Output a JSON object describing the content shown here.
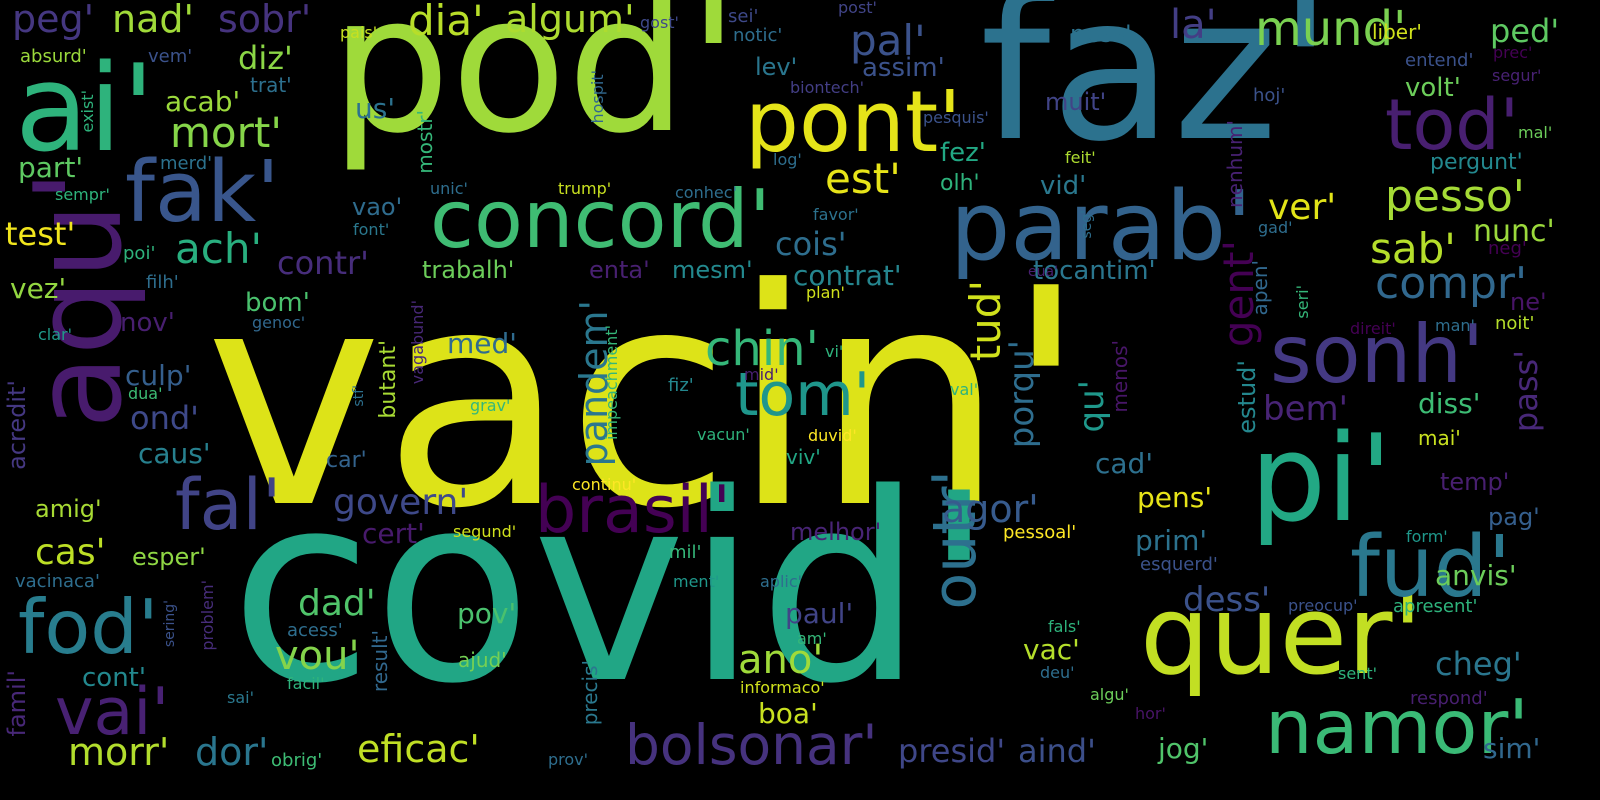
{
  "words": [
    {
      "text": "vacin'",
      "color": "#dde318"
    },
    {
      "text": "covid'",
      "color": "#21a685"
    },
    {
      "text": "pod'",
      "color": "#9fda3a"
    },
    {
      "text": "faz'",
      "color": "#2c728e"
    },
    {
      "text": "aqu'",
      "color": "#481b6d"
    },
    {
      "text": "ai'",
      "color": "#2eb37c"
    },
    {
      "text": "pont'",
      "color": "#e5e419"
    },
    {
      "text": "quer'",
      "color": "#c2df23"
    },
    {
      "text": "pi'",
      "color": "#22a884"
    },
    {
      "text": "fud'",
      "color": "#2a788e"
    },
    {
      "text": "parab'",
      "color": "#33638d"
    },
    {
      "text": "concord'",
      "color": "#3fbc73"
    },
    {
      "text": "fak'",
      "color": "#39568c"
    },
    {
      "text": "sonh'",
      "color": "#443983"
    },
    {
      "text": "tod'",
      "color": "#481f70"
    },
    {
      "text": "brasil'",
      "color": "#440154"
    },
    {
      "text": "bolsonar'",
      "color": "#46327e"
    },
    {
      "text": "namor'",
      "color": "#3aba76"
    },
    {
      "text": "fod'",
      "color": "#287d8e"
    },
    {
      "text": "vai'",
      "color": "#482173"
    },
    {
      "text": "fal'",
      "color": "#414487"
    },
    {
      "text": "tom'",
      "color": "#1f968b"
    },
    {
      "text": "outr'",
      "color": "#2d708e"
    },
    {
      "text": "tud'",
      "color": "#d0e11c"
    },
    {
      "text": "mund'",
      "color": "#7ad151"
    },
    {
      "text": "est'",
      "color": "#e7e419"
    },
    {
      "text": "compr'",
      "color": "#31688e"
    },
    {
      "text": "pesso'",
      "color": "#a5db36"
    },
    {
      "text": "sab'",
      "color": "#b5de2b"
    },
    {
      "text": "chin'",
      "color": "#35b779"
    },
    {
      "text": "pandem'",
      "color": "#2a778e"
    },
    {
      "text": "ach'",
      "color": "#29af7f"
    },
    {
      "text": "mort'",
      "color": "#86d549"
    },
    {
      "text": "pal'",
      "color": "#3b528b"
    },
    {
      "text": "dia'",
      "color": "#b8de29"
    },
    {
      "text": "algum'",
      "color": "#addc30"
    },
    {
      "text": "nad'",
      "color": "#a0da39"
    },
    {
      "text": "sobr'",
      "color": "#46337e"
    },
    {
      "text": "peg'",
      "color": "#453781"
    },
    {
      "text": "diz'",
      "color": "#8bd646"
    },
    {
      "text": "la'",
      "color": "#433e85"
    },
    {
      "text": "ped'",
      "color": "#5ec962"
    },
    {
      "text": "ver'",
      "color": "#e2e418"
    },
    {
      "text": "nunc'",
      "color": "#9bd93c"
    },
    {
      "text": "govern'",
      "color": "#3e4989"
    },
    {
      "text": "agor'",
      "color": "#375b8d"
    },
    {
      "text": "eficac'",
      "color": "#c0df25"
    },
    {
      "text": "morr'",
      "color": "#b2dd2d"
    },
    {
      "text": "dor'",
      "color": "#2a768e"
    },
    {
      "text": "ano'",
      "color": "#9fda3a"
    },
    {
      "text": "vou'",
      "color": "#84d44b"
    },
    {
      "text": "dad'",
      "color": "#50c46a"
    },
    {
      "text": "presid'",
      "color": "#3f4788"
    },
    {
      "text": "aind'",
      "color": "#3c4f8a"
    },
    {
      "text": "cheg'",
      "color": "#2a768e"
    },
    {
      "text": "pass'",
      "color": "#482878"
    },
    {
      "text": "bem'",
      "color": "#482475"
    },
    {
      "text": "test'",
      "color": "#f1e51d"
    },
    {
      "text": "cas'",
      "color": "#bddf26"
    },
    {
      "text": "contr'",
      "color": "#472d7b"
    },
    {
      "text": "cois'",
      "color": "#2e6e8e"
    },
    {
      "text": "contrat'",
      "color": "#25858e"
    },
    {
      "text": "tocantim'",
      "color": "#2a768e"
    },
    {
      "text": "trabalh'",
      "color": "#6ccd5a"
    },
    {
      "text": "enta'",
      "color": "#482071"
    },
    {
      "text": "mesm'",
      "color": "#23898e"
    },
    {
      "text": "gent'",
      "color": "#440154"
    },
    {
      "text": "porqu'",
      "color": "#2e6d8e"
    },
    {
      "text": "qu'",
      "color": "#1f988b"
    },
    {
      "text": "dess'",
      "color": "#3b528b"
    },
    {
      "text": "anvis'",
      "color": "#6ccd5a"
    },
    {
      "text": "diss'",
      "color": "#3dbc74"
    },
    {
      "text": "estud'",
      "color": "#24878e"
    },
    {
      "text": "acredit'",
      "color": "#453882"
    },
    {
      "text": "famil'",
      "color": "#482878"
    },
    {
      "text": "sim'",
      "color": "#31688e"
    },
    {
      "text": "jog'",
      "color": "#50c46a"
    },
    {
      "text": "vac'",
      "color": "#b5de2b"
    },
    {
      "text": "boa'",
      "color": "#c8e020"
    },
    {
      "text": "paul'",
      "color": "#414487"
    },
    {
      "text": "cert'",
      "color": "#481a6c"
    },
    {
      "text": "cad'",
      "color": "#2d708e"
    },
    {
      "text": "pens'",
      "color": "#e7e419"
    },
    {
      "text": "prim'",
      "color": "#2c728e"
    },
    {
      "text": "melhor'",
      "color": "#482475"
    },
    {
      "text": "med'",
      "color": "#2f6b8e"
    },
    {
      "text": "ond'",
      "color": "#3e4989"
    },
    {
      "text": "culp'",
      "color": "#355f8d"
    },
    {
      "text": "caus'",
      "color": "#27808e"
    },
    {
      "text": "amig'",
      "color": "#a8db34"
    },
    {
      "text": "esper'",
      "color": "#8fd744"
    },
    {
      "text": "part'",
      "color": "#5ec962"
    },
    {
      "text": "acab'",
      "color": "#9bd93c"
    },
    {
      "text": "us'",
      "color": "#2c728e"
    },
    {
      "text": "vez'",
      "color": "#93d741"
    },
    {
      "text": "nov'",
      "color": "#481f70"
    },
    {
      "text": "bom'",
      "color": "#4ac16d"
    },
    {
      "text": "cont'",
      "color": "#23888e"
    },
    {
      "text": "pov'",
      "color": "#4ac16d"
    },
    {
      "text": "ajud'",
      "color": "#75d054"
    },
    {
      "text": "butant'",
      "color": "#a8db34"
    },
    {
      "text": "result'",
      "color": "#31688e"
    },
    {
      "text": "precis'",
      "color": "#2a788e"
    },
    {
      "text": "menos'",
      "color": "#481668"
    },
    {
      "text": "fez'",
      "color": "#22a884"
    },
    {
      "text": "olh'",
      "color": "#2eb37c"
    },
    {
      "text": "vid'",
      "color": "#2a788e"
    },
    {
      "text": "muit'",
      "color": "#414487"
    },
    {
      "text": "assim'",
      "color": "#3b528b"
    },
    {
      "text": "lev'",
      "color": "#2a768e"
    },
    {
      "text": "ness'",
      "color": "#2c728e"
    },
    {
      "text": "volt'",
      "color": "#6ccd5a"
    },
    {
      "text": "pergunt'",
      "color": "#23888e"
    },
    {
      "text": "temp'",
      "color": "#481f70"
    },
    {
      "text": "pag'",
      "color": "#355f8d"
    },
    {
      "text": "mai'",
      "color": "#c8e020"
    },
    {
      "text": "vao'",
      "color": "#2f6c8e"
    },
    {
      "text": "car'",
      "color": "#33638d"
    },
    {
      "text": "viv'",
      "color": "#22a785"
    },
    {
      "text": "apen'",
      "color": "#31688e"
    },
    {
      "text": "nenhum'",
      "color": "#482173"
    },
    {
      "text": "ne'",
      "color": "#481467"
    },
    {
      "text": "noit'",
      "color": "#b5de2b"
    },
    {
      "text": "neg'",
      "color": "#440154"
    },
    {
      "text": "entend'",
      "color": "#3b528b"
    },
    {
      "text": "liber'",
      "color": "#d0e11c"
    },
    {
      "text": "gost'",
      "color": "#3e4989"
    },
    {
      "text": "sei'",
      "color": "#3e4989"
    },
    {
      "text": "notic'",
      "color": "#2e6e8e"
    },
    {
      "text": "biontech'",
      "color": "#433e85"
    },
    {
      "text": "hoj'",
      "color": "#3b528b"
    },
    {
      "text": "post'",
      "color": "#414487"
    },
    {
      "text": "pesquis'",
      "color": "#3b528b"
    },
    {
      "text": "log'",
      "color": "#2e6e8e"
    },
    {
      "text": "feit'",
      "color": "#addc30"
    },
    {
      "text": "hospit'",
      "color": "#31688e"
    },
    {
      "text": "mostr'",
      "color": "#35b779"
    },
    {
      "text": "merd'",
      "color": "#2c728e"
    },
    {
      "text": "trat'",
      "color": "#2d708e"
    },
    {
      "text": "absurd'",
      "color": "#9bd93c"
    },
    {
      "text": "vem'",
      "color": "#3b528b"
    },
    {
      "text": "pais'",
      "color": "#c8e020"
    },
    {
      "text": "exist'",
      "color": "#2eb37c"
    },
    {
      "text": "sempr'",
      "color": "#2eb37c"
    },
    {
      "text": "trump'",
      "color": "#c8e020"
    },
    {
      "text": "conhec'",
      "color": "#2e6e8e"
    },
    {
      "text": "unic'",
      "color": "#2e6e8e"
    },
    {
      "text": "favor'",
      "color": "#2c728e"
    },
    {
      "text": "font'",
      "color": "#2a788e"
    },
    {
      "text": "poi'",
      "color": "#2eb37c"
    },
    {
      "text": "filh'",
      "color": "#2e6e8e"
    },
    {
      "text": "clar'",
      "color": "#1f9a8a"
    },
    {
      "text": "genoc'",
      "color": "#31688e"
    },
    {
      "text": "vagabund'",
      "color": "#482878"
    },
    {
      "text": "impeachment'",
      "color": "#35b779"
    },
    {
      "text": "mid'",
      "color": "#481f70"
    },
    {
      "text": "fiz'",
      "color": "#24878e"
    },
    {
      "text": "vacun'",
      "color": "#2eb37c"
    },
    {
      "text": "duvid'",
      "color": "#fde725"
    },
    {
      "text": "val'",
      "color": "#2eb37c"
    },
    {
      "text": "grav'",
      "color": "#35b779"
    },
    {
      "text": "vi'",
      "color": "#2eb37c"
    },
    {
      "text": "stf'",
      "color": "#2d708e"
    },
    {
      "text": "dua'",
      "color": "#3dbc74"
    },
    {
      "text": "continu'",
      "color": "#fde725"
    },
    {
      "text": "segund'",
      "color": "#d0e11c"
    },
    {
      "text": "pessoal'",
      "color": "#fde725"
    },
    {
      "text": "mil'",
      "color": "#35b779"
    },
    {
      "text": "aplic'",
      "color": "#2e6e8e"
    },
    {
      "text": "ment'",
      "color": "#1f988b"
    },
    {
      "text": "am'",
      "color": "#35b779"
    },
    {
      "text": "acess'",
      "color": "#2e6e8e"
    },
    {
      "text": "problem'",
      "color": "#472d7b"
    },
    {
      "text": "sering'",
      "color": "#3b528b"
    },
    {
      "text": "vacinaca'",
      "color": "#2e6e8e"
    },
    {
      "text": "facil'",
      "color": "#2eb37c"
    },
    {
      "text": "sai'",
      "color": "#2a788e"
    },
    {
      "text": "obrig'",
      "color": "#3dbc74"
    },
    {
      "text": "prov'",
      "color": "#2e6e8e"
    },
    {
      "text": "informaco'",
      "color": "#d0e11c"
    },
    {
      "text": "deu'",
      "color": "#2e6e8e"
    },
    {
      "text": "fals'",
      "color": "#2eb37c"
    },
    {
      "text": "algu'",
      "color": "#6ccd5a"
    },
    {
      "text": "hor'",
      "color": "#481467"
    },
    {
      "text": "esquerd'",
      "color": "#3b528b"
    },
    {
      "text": "preocup'",
      "color": "#3b528b"
    },
    {
      "text": "apresent'",
      "color": "#2eb37c"
    },
    {
      "text": "form'",
      "color": "#1f988b"
    },
    {
      "text": "sent'",
      "color": "#2eb37c"
    },
    {
      "text": "respond'",
      "color": "#481f70"
    },
    {
      "text": "man'",
      "color": "#2e6e8e"
    },
    {
      "text": "direit'",
      "color": "#440154"
    },
    {
      "text": "seri'",
      "color": "#35b779"
    },
    {
      "text": "plan'",
      "color": "#d0e11c"
    },
    {
      "text": "eua'",
      "color": "#481f70"
    },
    {
      "text": "gad'",
      "color": "#2e6e8e"
    },
    {
      "text": "seg'",
      "color": "#2e6e8e"
    },
    {
      "text": "mal'",
      "color": "#6ccd5a"
    },
    {
      "text": "prec'",
      "color": "#440154"
    },
    {
      "text": "segur'",
      "color": "#482173"
    }
  ]
}
